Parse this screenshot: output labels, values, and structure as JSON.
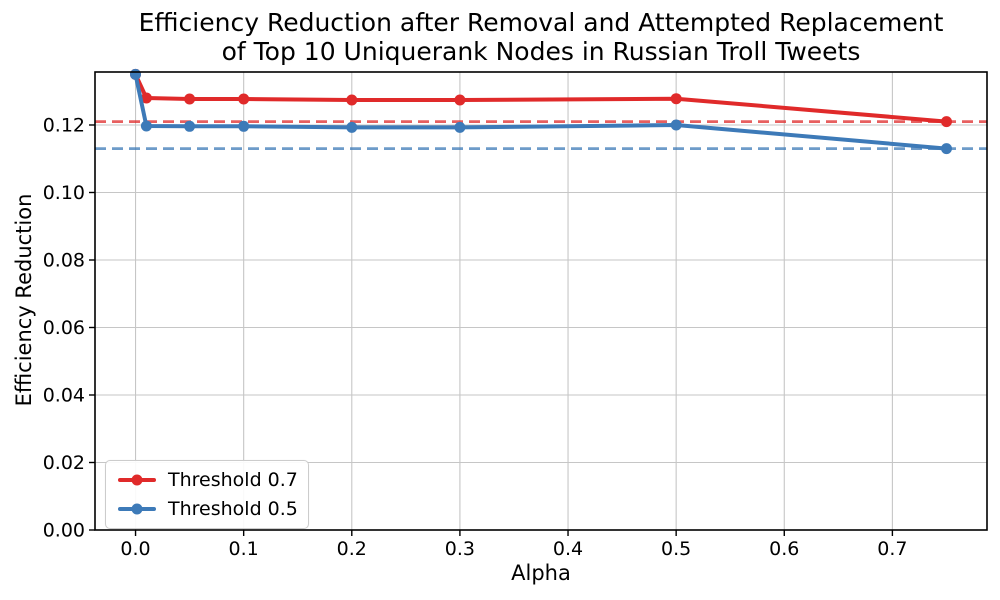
{
  "chart_data": {
    "type": "line",
    "title": "Efficiency Reduction after Removal and Attempted Replacement\nof Top 10 Uniquerank Nodes in Russian Troll Tweets",
    "title_lines": [
      "Efficiency Reduction after Removal and Attempted Replacement",
      "of Top 10 Uniquerank Nodes in Russian Troll Tweets"
    ],
    "xlabel": "Alpha",
    "ylabel": "Efficiency Reduction",
    "x": [
      0.0,
      0.01,
      0.05,
      0.1,
      0.2,
      0.3,
      0.5,
      0.75
    ],
    "series": [
      {
        "name": "Threshold 0.7",
        "color": "#e02a2a",
        "values": [
          0.135,
          0.128,
          0.1277,
          0.1277,
          0.1274,
          0.1274,
          0.1278,
          0.121
        ]
      },
      {
        "name": "Threshold 0.5",
        "color": "#3d7ab8",
        "values": [
          0.135,
          0.1197,
          0.1196,
          0.1196,
          0.1193,
          0.1193,
          0.12,
          0.113
        ]
      }
    ],
    "threshold_lines": [
      {
        "name": "threshold-0.7-asymptote",
        "value": 0.121,
        "color": "#e02a2a"
      },
      {
        "name": "threshold-0.5-asymptote",
        "value": 0.113,
        "color": "#3d7ab8"
      }
    ],
    "x_ticks": {
      "values": [
        0.0,
        0.1,
        0.2,
        0.3,
        0.4,
        0.5,
        0.6,
        0.7
      ],
      "labels": [
        "0.0",
        "0.1",
        "0.2",
        "0.3",
        "0.4",
        "0.5",
        "0.6",
        "0.7"
      ]
    },
    "y_ticks": {
      "values": [
        0.0,
        0.02,
        0.04,
        0.06,
        0.08,
        0.1,
        0.12
      ],
      "labels": [
        "0.00",
        "0.02",
        "0.04",
        "0.06",
        "0.08",
        "0.10",
        "0.12"
      ]
    },
    "xlim": [
      -0.0375,
      0.7875
    ],
    "ylim": [
      0,
      0.1357
    ],
    "grid": true,
    "legend": {
      "position": "lower-left",
      "items": [
        "Threshold 0.7",
        "Threshold 0.5"
      ]
    },
    "colors": {
      "grid": "#c6c6c6",
      "spine": "#000000",
      "text": "#000000"
    }
  }
}
